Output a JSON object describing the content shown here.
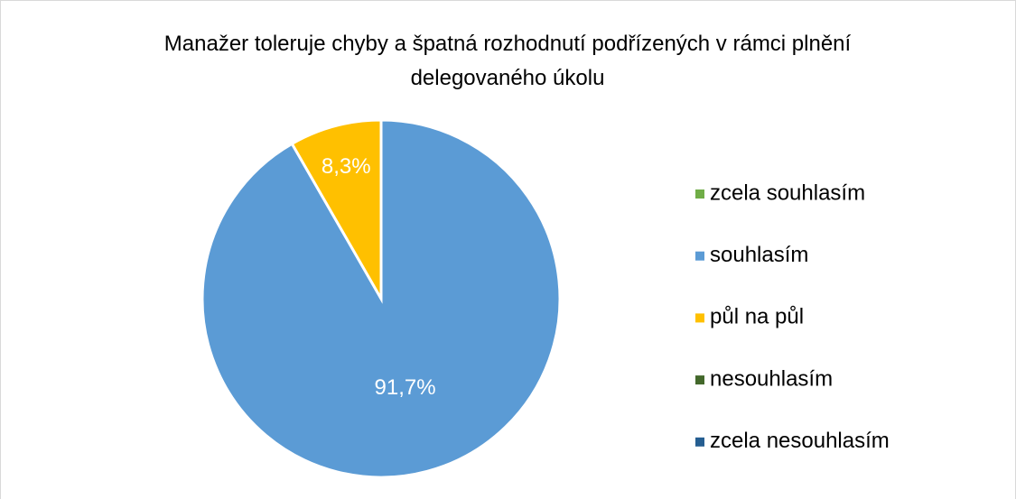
{
  "chart_data": {
    "type": "pie",
    "title": "Manažer toleruje chyby a špatná rozhodnutí podřízených v rámci plnění delegovaného úkolu",
    "categories": [
      "zcela souhlasím",
      "souhlasím",
      "půl na půl",
      "nesouhlasím",
      "zcela nesouhlasím"
    ],
    "values": [
      0,
      91.7,
      8.3,
      0,
      0
    ],
    "value_labels": [
      null,
      "91,7%",
      "8,3%",
      null,
      null
    ],
    "colors": [
      "#70ad47",
      "#5b9bd5",
      "#ffc000",
      "#43682b",
      "#255e91"
    ],
    "legend": "right"
  }
}
